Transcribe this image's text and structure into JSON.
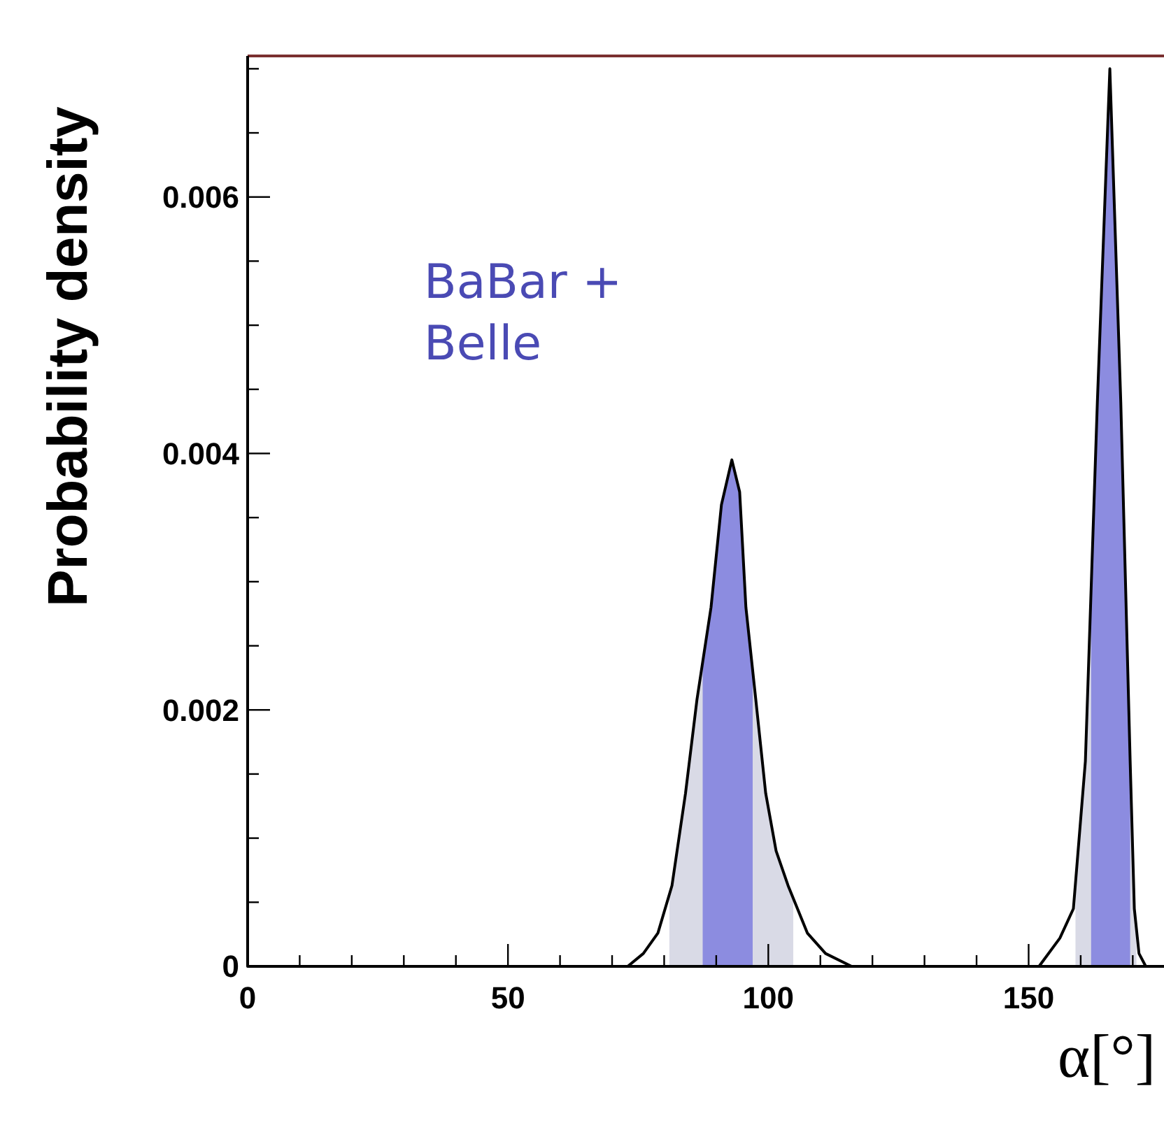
{
  "chart_data": {
    "type": "area",
    "xlabel": "α[°]",
    "ylabel": "Probability density",
    "annotations": [
      "BaBar + Belle"
    ],
    "xlim": [
      0,
      176
    ],
    "ylim": [
      0,
      0.0071
    ],
    "xticks": [
      0,
      {
        "value": 10,
        "label": null
      },
      {
        "value": 20,
        "label": null
      },
      {
        "value": 30,
        "label": null
      },
      {
        "value": 40,
        "label": null
      },
      50,
      {
        "value": 60,
        "label": null
      },
      {
        "value": 70,
        "label": null
      },
      {
        "value": 80,
        "label": null
      },
      {
        "value": 90,
        "label": null
      },
      100,
      {
        "value": 110,
        "label": null
      },
      {
        "value": 120,
        "label": null
      },
      {
        "value": 130,
        "label": null
      },
      {
        "value": 140,
        "label": null
      },
      150,
      {
        "value": 160,
        "label": null
      },
      {
        "value": 170,
        "label": null
      }
    ],
    "yticks": [
      0,
      {
        "value": 0.0005,
        "label": null
      },
      {
        "value": 0.001,
        "label": null
      },
      {
        "value": 0.0015,
        "label": null
      },
      0.002,
      {
        "value": 0.0025,
        "label": null
      },
      {
        "value": 0.003,
        "label": null
      },
      {
        "value": 0.0035,
        "label": null
      },
      0.004,
      {
        "value": 0.0045,
        "label": null
      },
      {
        "value": 0.005,
        "label": null
      },
      {
        "value": 0.0055,
        "label": null
      },
      0.006,
      {
        "value": 0.0065,
        "label": null
      },
      {
        "value": 0.007,
        "label": null
      }
    ],
    "grid": false,
    "series": [
      {
        "color": "#d9dae6",
        "x": [
          81,
          81.5,
          84.1,
          86.3,
          89,
          91,
          93,
          94.5,
          95.7,
          97.6,
          99.5,
          101.5,
          103.8,
          104.8
        ],
        "values": [
          0.00055,
          0.00063,
          0.00135,
          0.00208,
          0.0028,
          0.0036,
          0.00395,
          0.0037,
          0.0028,
          0.00208,
          0.00135,
          0.0009,
          0.00063,
          0.00052
        ]
      },
      {
        "color": "#d9dae6",
        "x": [
          159,
          160.9,
          163.2,
          165.6,
          167.7,
          169.5,
          170.3,
          170.7
        ],
        "values": [
          0.0007,
          0.0016,
          0.0044,
          0.007,
          0.0044,
          0.0016,
          0.00045,
          0.0003
        ]
      },
      {
        "color": "#8c8ce0",
        "x": [
          87.4,
          89,
          91,
          93,
          94.5,
          95.7,
          97
        ],
        "values": [
          0.0024,
          0.0028,
          0.0036,
          0.00395,
          0.0037,
          0.0028,
          0.0023
        ]
      },
      {
        "color": "#8c8ce0",
        "x": [
          162,
          163.2,
          165.6,
          167.7,
          169.5
        ],
        "values": [
          0.003,
          0.0044,
          0.007,
          0.0044,
          0.0016
        ]
      },
      {
        "type": "line",
        "color": "#000000",
        "x": [
          0,
          70,
          73,
          76,
          78.8,
          81.5,
          84.1,
          86.3,
          89,
          91,
          93,
          94.5,
          95.7,
          97.6,
          99.5,
          101.5,
          103.8,
          107.5,
          111,
          116,
          150.5,
          152,
          156,
          158.6,
          160.9,
          163.2,
          165.6,
          167.7,
          169.5,
          170.3,
          171.2,
          172.5,
          176
        ],
        "values": [
          0,
          0,
          0,
          0.0001,
          0.00026,
          0.00063,
          0.00135,
          0.00208,
          0.0028,
          0.0036,
          0.00395,
          0.0037,
          0.0028,
          0.00208,
          0.00135,
          0.0009,
          0.00063,
          0.00026,
          0.0001,
          0,
          0,
          0,
          0.00022,
          0.00045,
          0.0016,
          0.0044,
          0.007,
          0.0044,
          0.0016,
          0.00045,
          0.0001,
          0,
          0
        ]
      }
    ]
  }
}
